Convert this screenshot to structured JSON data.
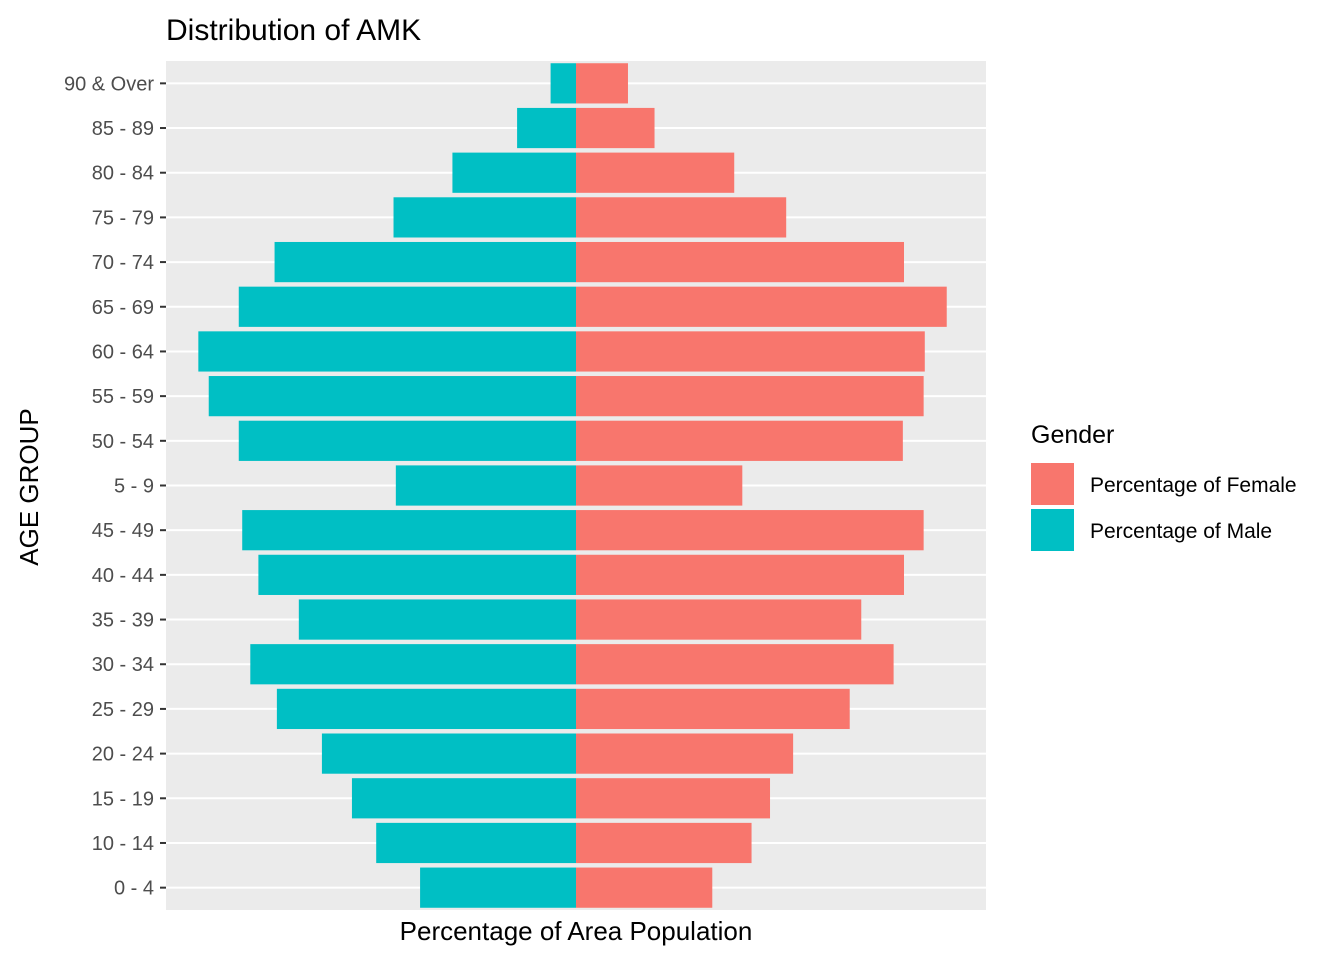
{
  "chart_data": {
    "type": "bar",
    "orientation": "horizontal",
    "title": "Distribution of AMK",
    "xlabel": "Percentage of Area Population",
    "ylabel": "AGE GROUP",
    "x_tick_labels_shown": false,
    "grid": true,
    "legend_position": "right",
    "legend_title": "Gender",
    "categories": [
      "0 - 4",
      "10 - 14",
      "15 - 19",
      "20 - 24",
      "25 - 29",
      "30 - 34",
      "35 - 39",
      "40 - 44",
      "45 - 49",
      "5 - 9",
      "50 - 54",
      "55 - 59",
      "60 - 64",
      "65 - 69",
      "70 - 74",
      "75 - 79",
      "80 - 84",
      "85 - 89",
      "90 & Over"
    ],
    "xlim": [
      -3.55,
      3.55
    ],
    "series": [
      {
        "name": "Percentage of Female",
        "color": "#F8766D",
        "values": [
          1.18,
          1.52,
          1.68,
          1.88,
          2.37,
          2.75,
          2.47,
          2.84,
          3.01,
          1.44,
          2.83,
          3.01,
          3.02,
          3.21,
          2.84,
          1.82,
          1.37,
          0.68,
          0.45
        ]
      },
      {
        "name": "Percentage of Male",
        "color": "#00BFC4",
        "values": [
          -1.35,
          -1.73,
          -1.94,
          -2.2,
          -2.59,
          -2.82,
          -2.4,
          -2.75,
          -2.89,
          -1.56,
          -2.92,
          -3.18,
          -3.27,
          -2.92,
          -2.61,
          -1.58,
          -1.07,
          -0.51,
          -0.22
        ]
      }
    ]
  }
}
